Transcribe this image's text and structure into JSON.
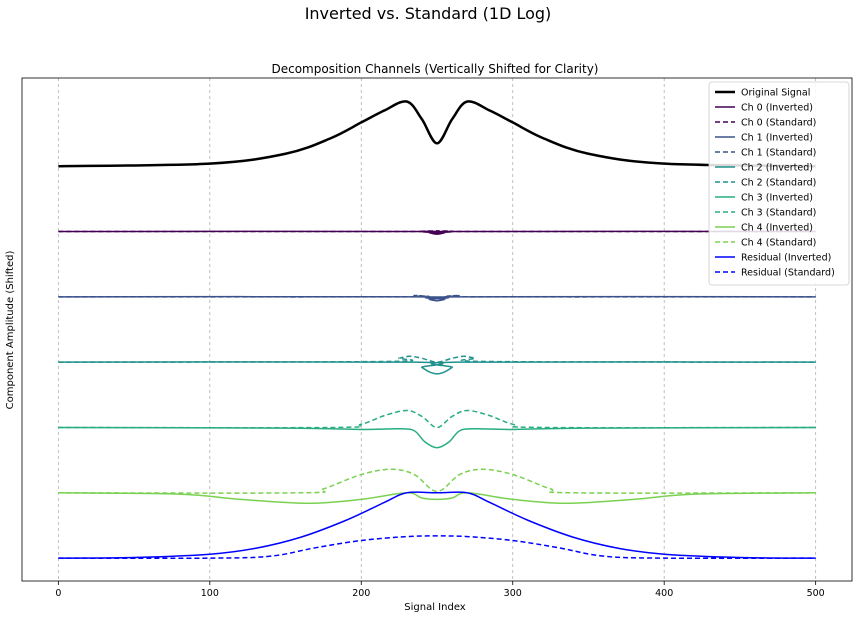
{
  "figure": {
    "suptitle": "Inverted vs. Standard (1D Log)"
  },
  "chart_data": {
    "type": "line",
    "title": "Decomposition Channels (Vertically Shifted for Clarity)",
    "xlabel": "Signal Index",
    "ylabel": "Component Amplitude (Shifted)",
    "xlim": [
      -24,
      524
    ],
    "ylim": [
      -6.35,
      1.35
    ],
    "xticks": [
      0,
      100,
      200,
      300,
      400,
      500
    ],
    "grid": "x-dashed",
    "legend_position": "top-right",
    "vertical_shift_per_channel": -1,
    "series": [
      {
        "name": "Original Signal",
        "style": "solid",
        "color": "#000000",
        "width": 2.5,
        "offset": 0,
        "x": [
          0,
          100,
          150,
          180,
          200,
          215,
          230,
          240,
          250,
          260,
          270,
          285,
          300,
          320,
          350,
          400,
          500
        ],
        "y": [
          0.0,
          0.04,
          0.19,
          0.43,
          0.67,
          0.85,
          0.99,
          0.72,
          0.35,
          0.72,
          0.99,
          0.85,
          0.67,
          0.43,
          0.19,
          0.04,
          0.0
        ]
      },
      {
        "name": "Ch 0 (Inverted)",
        "style": "solid",
        "color": "#440154",
        "width": 1.5,
        "offset": -1,
        "x": [
          0,
          240,
          245,
          250,
          255,
          260,
          500
        ],
        "y": [
          0.0,
          0.0,
          -0.02,
          -0.04,
          -0.02,
          0.0,
          0.0
        ]
      },
      {
        "name": "Ch 0 (Standard)",
        "style": "dashed",
        "color": "#440154",
        "width": 1.5,
        "offset": -1,
        "x": [
          0,
          240,
          250,
          260,
          500
        ],
        "y": [
          0.0,
          0.0,
          0.01,
          0.0,
          0.0
        ]
      },
      {
        "name": "Ch 1 (Inverted)",
        "style": "solid",
        "color": "#3b528b",
        "width": 1.5,
        "offset": -2,
        "x": [
          0,
          238,
          245,
          250,
          255,
          262,
          500
        ],
        "y": [
          0.0,
          0.0,
          -0.04,
          -0.06,
          -0.04,
          0.0,
          0.0
        ]
      },
      {
        "name": "Ch 1 (Standard)",
        "style": "dashed",
        "color": "#3b528b",
        "width": 1.5,
        "offset": -2,
        "x": [
          0,
          225,
          235,
          242,
          250,
          258,
          265,
          275,
          500
        ],
        "y": [
          0.0,
          0.0,
          0.02,
          0.01,
          -0.02,
          0.01,
          0.02,
          0.0,
          0.0
        ]
      },
      {
        "name": "Ch 2 (Inverted)",
        "style": "solid",
        "color": "#21918c",
        "width": 1.5,
        "offset": -3,
        "x": [
          0,
          235,
          240,
          245,
          250,
          255,
          260,
          265,
          500
        ],
        "y": [
          0.0,
          0.0,
          -0.08,
          -0.15,
          -0.18,
          -0.15,
          -0.08,
          0.0,
          0.0
        ]
      },
      {
        "name": "Ch 2 (Standard)",
        "style": "dashed",
        "color": "#21918c",
        "width": 1.5,
        "offset": -3,
        "x": [
          0,
          215,
          225,
          232,
          240,
          250,
          260,
          268,
          275,
          285,
          500
        ],
        "y": [
          0.0,
          0.01,
          0.06,
          0.09,
          0.06,
          0.0,
          0.06,
          0.09,
          0.06,
          0.01,
          0.0
        ]
      },
      {
        "name": "Ch 3 (Inverted)",
        "style": "solid",
        "color": "#27ad81",
        "width": 1.5,
        "offset": -4,
        "x": [
          0,
          150,
          200,
          225,
          235,
          242,
          250,
          258,
          265,
          275,
          300,
          350,
          500
        ],
        "y": [
          0.0,
          -0.01,
          -0.03,
          -0.02,
          -0.05,
          -0.22,
          -0.31,
          -0.22,
          -0.05,
          -0.02,
          -0.03,
          -0.01,
          0.0
        ]
      },
      {
        "name": "Ch 3 (Standard)",
        "style": "dashed",
        "color": "#27ad81",
        "width": 1.5,
        "offset": -4,
        "x": [
          0,
          180,
          200,
          215,
          230,
          240,
          250,
          260,
          270,
          285,
          300,
          320,
          500
        ],
        "y": [
          0.0,
          0.0,
          0.05,
          0.18,
          0.26,
          0.17,
          0.0,
          0.17,
          0.26,
          0.18,
          0.05,
          0.0,
          0.0
        ]
      },
      {
        "name": "Ch 4 (Inverted)",
        "style": "solid",
        "color": "#7ad151",
        "width": 1.5,
        "offset": -5,
        "x": [
          0,
          80,
          120,
          165,
          200,
          230,
          240,
          250,
          260,
          270,
          300,
          335,
          380,
          420,
          500
        ],
        "y": [
          0.0,
          -0.02,
          -0.1,
          -0.16,
          -0.1,
          0.0,
          -0.08,
          -0.1,
          -0.08,
          0.0,
          -0.1,
          -0.16,
          -0.1,
          -0.02,
          0.0
        ]
      },
      {
        "name": "Ch 4 (Standard)",
        "style": "dashed",
        "color": "#7ad151",
        "width": 1.5,
        "offset": -5,
        "x": [
          0,
          160,
          175,
          200,
          220,
          235,
          250,
          265,
          280,
          300,
          325,
          340,
          500
        ],
        "y": [
          0.0,
          0.0,
          0.06,
          0.28,
          0.36,
          0.28,
          0.02,
          0.28,
          0.36,
          0.28,
          0.06,
          0.0,
          0.0
        ]
      },
      {
        "name": "Residual (Inverted)",
        "style": "solid",
        "color": "#0000ff",
        "width": 1.5,
        "offset": -6,
        "x": [
          0,
          50,
          100,
          130,
          160,
          190,
          215,
          230,
          250,
          270,
          285,
          310,
          340,
          370,
          400,
          450,
          500
        ],
        "y": [
          0.0,
          0.01,
          0.06,
          0.15,
          0.32,
          0.58,
          0.85,
          1.0,
          1.0,
          1.0,
          0.85,
          0.58,
          0.32,
          0.15,
          0.06,
          0.01,
          0.0
        ]
      },
      {
        "name": "Residual (Standard)",
        "style": "dashed",
        "color": "#0000ff",
        "width": 1.5,
        "offset": -6,
        "x": [
          0,
          100,
          140,
          170,
          200,
          230,
          250,
          270,
          300,
          330,
          360,
          400,
          500
        ],
        "y": [
          0.0,
          0.0,
          0.03,
          0.16,
          0.27,
          0.33,
          0.34,
          0.33,
          0.27,
          0.16,
          0.03,
          0.0,
          0.0
        ]
      }
    ]
  }
}
